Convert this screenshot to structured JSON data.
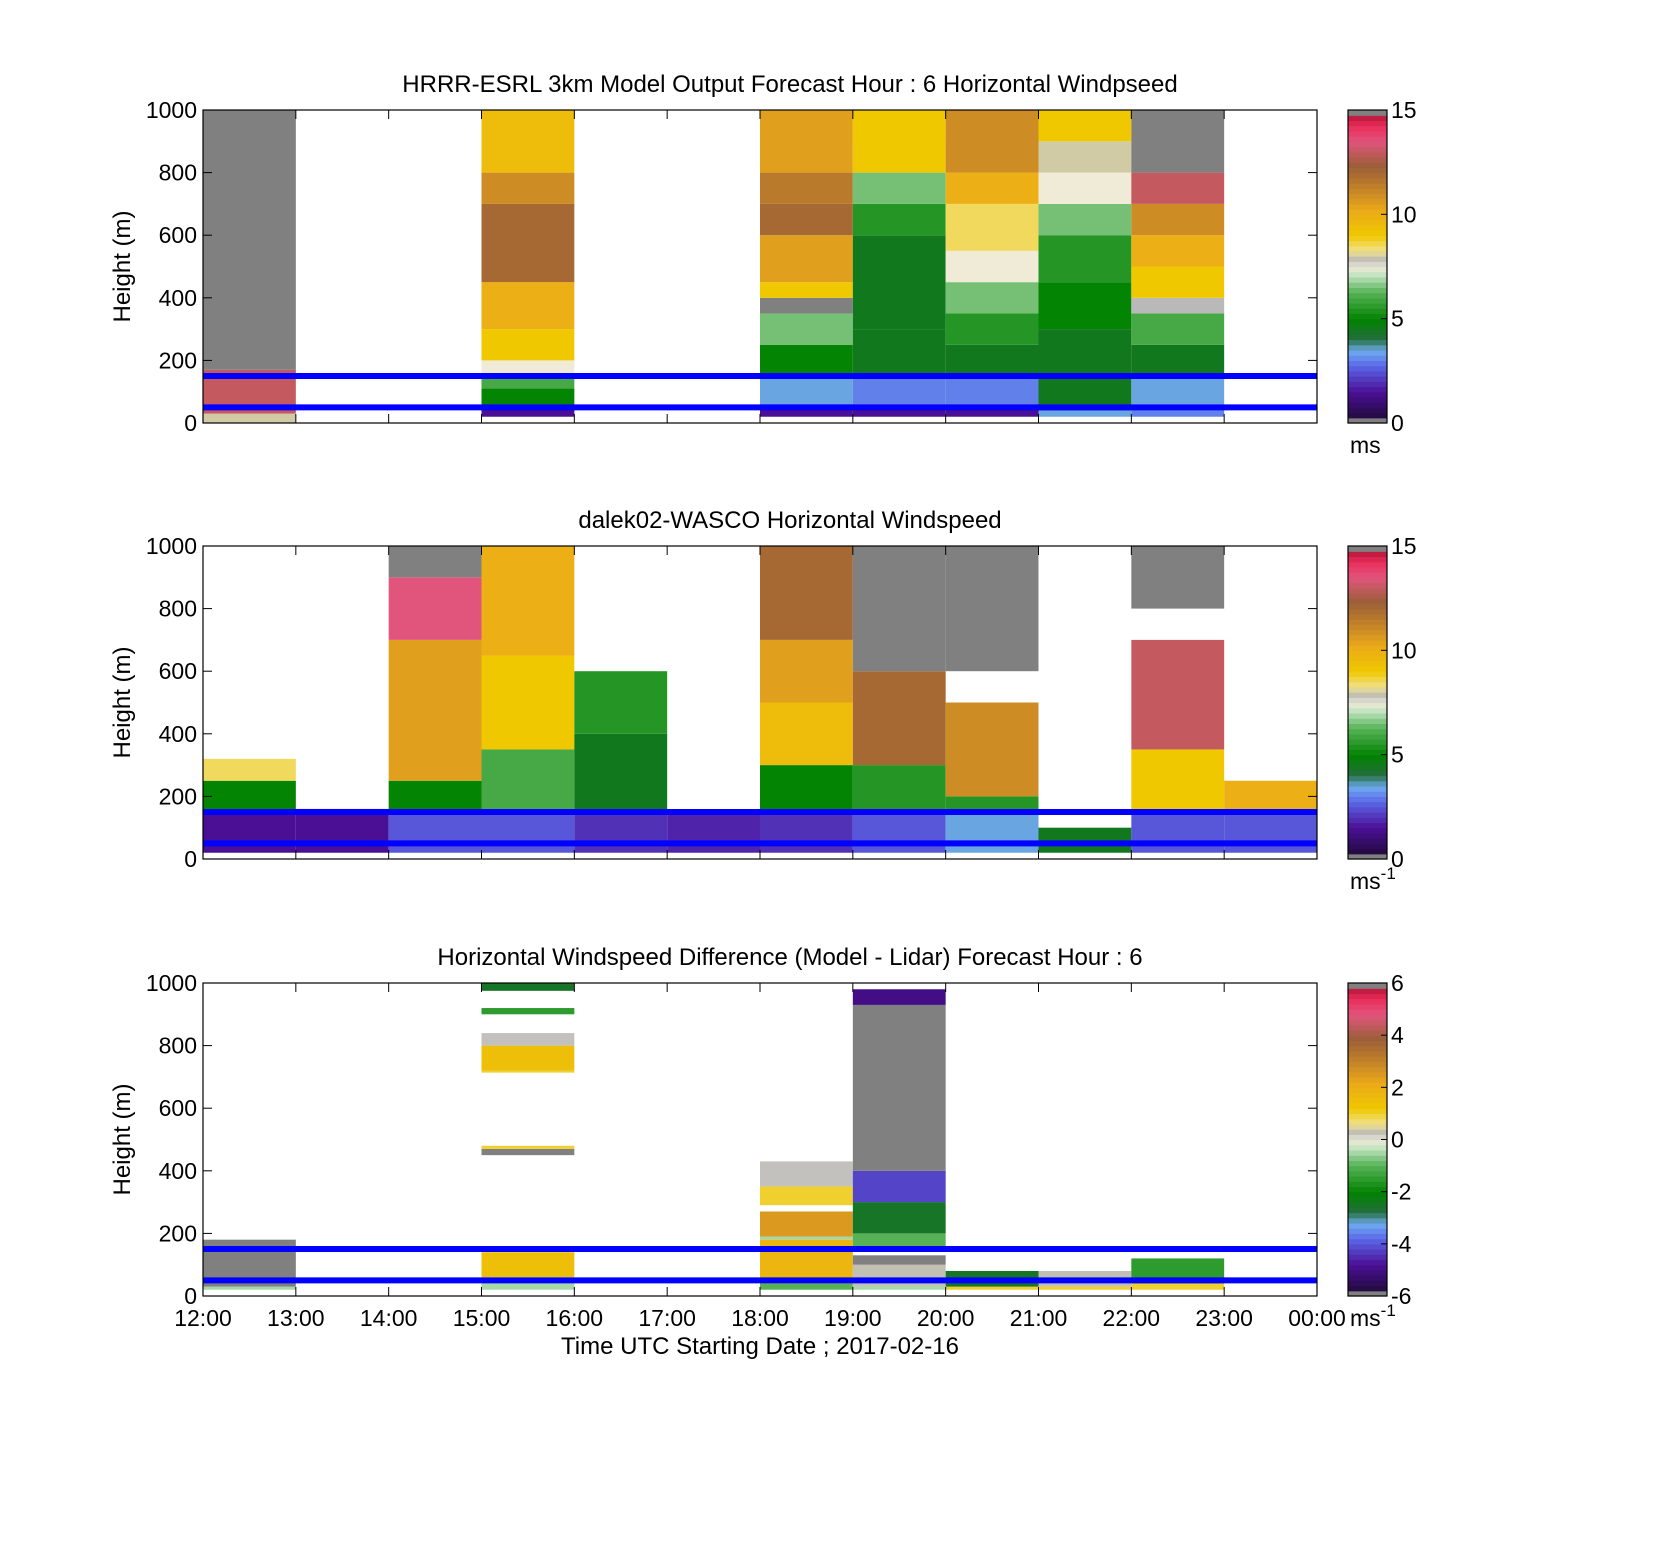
{
  "chart_data": [
    {
      "type": "heatmap",
      "title": "HRRR-ESRL 3km Model Output   Forecast Hour : 6 Horizontal Windpseed",
      "xlabel": "",
      "ylabel": "Height (m)",
      "ylim": [
        0,
        1000
      ],
      "yticks": [
        "0",
        "200",
        "400",
        "600",
        "800",
        "1000"
      ],
      "xlim_hours": [
        12,
        24
      ],
      "colorbar": {
        "min": 0,
        "max": 15,
        "ticks": [
          "0",
          "5",
          "10",
          "15"
        ],
        "unit": "ms",
        "unit_sup": "",
        "scale": "speed"
      },
      "reference_lines_m": [
        150,
        50
      ],
      "columns": [
        {
          "start": "12:00",
          "end": "13:00",
          "bins": [
            [
              30,
              0,
              8
            ],
            [
              170,
              30,
              13
            ],
            [
              1000,
              170,
              -1
            ]
          ]
        },
        {
          "start": "15:00",
          "end": "16:00",
          "bins": [
            [
              50,
              20,
              1.5
            ],
            [
              110,
              50,
              5
            ],
            [
              150,
              110,
              6
            ],
            [
              200,
              150,
              7.5
            ],
            [
              300,
              200,
              9
            ],
            [
              450,
              300,
              10
            ],
            [
              700,
              450,
              12
            ],
            [
              800,
              700,
              11
            ],
            [
              1000,
              800,
              9.5
            ]
          ]
        },
        {
          "start": "18:00",
          "end": "19:00",
          "bins": [
            [
              60,
              20,
              1.5
            ],
            [
              150,
              60,
              3.5
            ],
            [
              250,
              150,
              5
            ],
            [
              350,
              250,
              6.5
            ],
            [
              400,
              350,
              -1
            ],
            [
              450,
              400,
              9
            ],
            [
              600,
              450,
              10.5
            ],
            [
              700,
              600,
              12
            ],
            [
              800,
              700,
              11.5
            ],
            [
              1000,
              800,
              10.5
            ]
          ]
        },
        {
          "start": "19:00",
          "end": "20:00",
          "bins": [
            [
              60,
              20,
              1.5
            ],
            [
              150,
              60,
              3
            ],
            [
              300,
              150,
              4.5
            ],
            [
              600,
              300,
              4.5
            ],
            [
              700,
              600,
              5.5
            ],
            [
              800,
              700,
              6.5
            ],
            [
              900,
              800,
              8
            ],
            [
              1000,
              800,
              9
            ]
          ]
        },
        {
          "start": "20:00",
          "end": "21:00",
          "bins": [
            [
              60,
              20,
              1.5
            ],
            [
              150,
              60,
              3
            ],
            [
              250,
              150,
              4.5
            ],
            [
              350,
              250,
              5.5
            ],
            [
              450,
              350,
              6.5
            ],
            [
              550,
              450,
              7.5
            ],
            [
              700,
              550,
              8.5
            ],
            [
              800,
              700,
              10
            ],
            [
              1000,
              800,
              11
            ]
          ]
        },
        {
          "start": "21:00",
          "end": "22:00",
          "bins": [
            [
              40,
              20,
              3.5
            ],
            [
              150,
              40,
              4.5
            ],
            [
              300,
              150,
              4.5
            ],
            [
              450,
              300,
              5
            ],
            [
              600,
              450,
              5.5
            ],
            [
              700,
              600,
              6.5
            ],
            [
              800,
              700,
              7.5
            ],
            [
              900,
              800,
              8
            ],
            [
              1000,
              900,
              9
            ]
          ]
        },
        {
          "start": "22:00",
          "end": "23:00",
          "bins": [
            [
              60,
              20,
              3
            ],
            [
              150,
              60,
              3.5
            ],
            [
              250,
              150,
              4.5
            ],
            [
              350,
              250,
              6
            ],
            [
              400,
              350,
              7.8
            ],
            [
              500,
              400,
              9
            ],
            [
              600,
              500,
              10
            ],
            [
              700,
              600,
              11
            ],
            [
              800,
              700,
              13
            ],
            [
              1000,
              800,
              -1
            ]
          ]
        }
      ]
    },
    {
      "type": "heatmap",
      "title": "dalek02-WASCO  Horizontal Windspeed",
      "xlabel": "",
      "ylabel": "Height (m)",
      "ylim": [
        0,
        1000
      ],
      "yticks": [
        "0",
        "200",
        "400",
        "600",
        "800",
        "1000"
      ],
      "xlim_hours": [
        12,
        24
      ],
      "colorbar": {
        "min": 0,
        "max": 15,
        "ticks": [
          "0",
          "5",
          "10",
          "15"
        ],
        "unit": "ms",
        "unit_sup": "-1",
        "scale": "speed"
      },
      "reference_lines_m": [
        150,
        50
      ],
      "columns": [
        {
          "start": "12:00",
          "end": "13:00",
          "bins": [
            [
              150,
              20,
              1.5
            ],
            [
              250,
              150,
              5
            ],
            [
              320,
              250,
              8.5
            ]
          ]
        },
        {
          "start": "13:00",
          "end": "14:00",
          "bins": [
            [
              160,
              20,
              1.5
            ]
          ]
        },
        {
          "start": "14:00",
          "end": "15:00",
          "bins": [
            [
              150,
              20,
              2.5
            ],
            [
              250,
              150,
              5
            ],
            [
              700,
              250,
              10.5
            ],
            [
              900,
              700,
              13.5
            ],
            [
              1000,
              900,
              -1
            ]
          ]
        },
        {
          "start": "15:00",
          "end": "16:00",
          "bins": [
            [
              150,
              20,
              2.5
            ],
            [
              350,
              150,
              6
            ],
            [
              650,
              350,
              9
            ],
            [
              1000,
              650,
              10
            ]
          ]
        },
        {
          "start": "16:00",
          "end": "17:00",
          "bins": [
            [
              150,
              20,
              2
            ],
            [
              400,
              150,
              4.5
            ],
            [
              600,
              400,
              5.5
            ]
          ]
        },
        {
          "start": "17:00",
          "end": "18:00",
          "bins": [
            [
              150,
              20,
              1.8
            ]
          ]
        },
        {
          "start": "18:00",
          "end": "19:00",
          "bins": [
            [
              150,
              20,
              2
            ],
            [
              300,
              150,
              5
            ],
            [
              500,
              300,
              9.5
            ],
            [
              700,
              500,
              10.5
            ],
            [
              1000,
              700,
              12
            ]
          ]
        },
        {
          "start": "19:00",
          "end": "20:00",
          "bins": [
            [
              150,
              20,
              2.5
            ],
            [
              300,
              150,
              5.5
            ],
            [
              600,
              300,
              12
            ],
            [
              1000,
              600,
              -1
            ]
          ]
        },
        {
          "start": "20:00",
          "end": "21:00",
          "bins": [
            [
              150,
              20,
              3.5
            ],
            [
              200,
              150,
              5.5
            ],
            [
              500,
              200,
              11
            ],
            [
              1000,
              600,
              -1
            ]
          ]
        },
        {
          "start": "21:00",
          "end": "22:00",
          "bins": [
            [
              100,
              20,
              4.5
            ]
          ]
        },
        {
          "start": "22:00",
          "end": "23:00",
          "bins": [
            [
              150,
              20,
              2.5
            ],
            [
              350,
              150,
              9
            ],
            [
              700,
              350,
              13
            ],
            [
              1000,
              800,
              -1
            ]
          ]
        },
        {
          "start": "23:00",
          "end": "00:00",
          "bins": [
            [
              150,
              20,
              2.5
            ],
            [
              250,
              150,
              10
            ]
          ]
        }
      ]
    },
    {
      "type": "heatmap",
      "title": "Horizontal Windspeed Difference (Model - Lidar) Forecast Hour : 6",
      "xlabel": "Time UTC  Starting Date ; 2017-02-16",
      "ylabel": "Height (m)",
      "ylim": [
        0,
        1000
      ],
      "yticks": [
        "0",
        "200",
        "400",
        "600",
        "800",
        "1000"
      ],
      "xticks": [
        "12:00",
        "13:00",
        "14:00",
        "15:00",
        "16:00",
        "17:00",
        "18:00",
        "19:00",
        "20:00",
        "21:00",
        "22:00",
        "23:00",
        "00:00"
      ],
      "xlim_hours": [
        12,
        24
      ],
      "colorbar": {
        "min": -6,
        "max": 6,
        "ticks": [
          "-6",
          "-4",
          "-2",
          "0",
          "2",
          "4",
          "6"
        ],
        "unit": "ms",
        "unit_sup": "-1",
        "scale": "diff"
      },
      "reference_lines_m": [
        150,
        50
      ],
      "columns": [
        {
          "start": "12:00",
          "end": "13:00",
          "bins": [
            [
              30,
              20,
              -0.5
            ],
            [
              180,
              30,
              6.5
            ]
          ]
        },
        {
          "start": "15:00",
          "end": "16:00",
          "bins": [
            [
              60,
              20,
              -0.5
            ],
            [
              140,
              60,
              1.5
            ],
            [
              470,
              450,
              6.5
            ],
            [
              480,
              470,
              1
            ],
            [
              720,
              720,
              1
            ],
            [
              800,
              720,
              1.5
            ],
            [
              840,
              800,
              0.2
            ],
            [
              920,
              900,
              -1.5
            ],
            [
              1000,
              975,
              -2.5
            ]
          ]
        },
        {
          "start": "18:00",
          "end": "19:00",
          "bins": [
            [
              40,
              20,
              -1
            ],
            [
              180,
              40,
              1.8
            ],
            [
              190,
              180,
              -0.5
            ],
            [
              270,
              190,
              2.5
            ],
            [
              350,
              290,
              1
            ],
            [
              430,
              350,
              0.2
            ]
          ]
        },
        {
          "start": "19:00",
          "end": "20:00",
          "bins": [
            [
              30,
              20,
              -0.5
            ],
            [
              100,
              30,
              0.3
            ],
            [
              130,
              100,
              6.5
            ],
            [
              200,
              150,
              -1
            ],
            [
              300,
              200,
              -2.5
            ],
            [
              400,
              300,
              -4.2
            ],
            [
              930,
              400,
              6.5
            ],
            [
              980,
              930,
              -5
            ]
          ]
        },
        {
          "start": "20:00",
          "end": "21:00",
          "bins": [
            [
              30,
              20,
              1
            ],
            [
              80,
              30,
              -2.5
            ]
          ]
        },
        {
          "start": "21:00",
          "end": "22:00",
          "bins": [
            [
              30,
              20,
              1
            ],
            [
              80,
              30,
              0.3
            ]
          ]
        },
        {
          "start": "22:00",
          "end": "23:00",
          "bins": [
            [
              40,
              20,
              1
            ],
            [
              120,
              40,
              -1.5
            ]
          ]
        }
      ]
    }
  ]
}
